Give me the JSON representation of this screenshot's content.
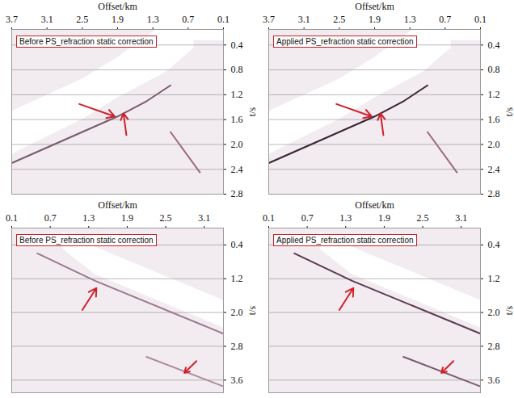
{
  "chart_data": [
    {
      "type": "line",
      "annotation": "Before PS_refraction static correction",
      "x_label": "Offset/km",
      "y_label": "t/s",
      "xlim": [
        3.7,
        0.1
      ],
      "xticks": [
        3.7,
        3.1,
        2.5,
        1.9,
        1.3,
        0.7,
        0.1
      ],
      "ylim": [
        0.15,
        2.8
      ],
      "yticks": [
        0.4,
        0.8,
        1.2,
        1.6,
        {
          "value": 2,
          "label": "2.0"
        },
        2.4,
        2.8
      ],
      "grid": true,
      "bands": [
        {
          "x": [
            3.7,
            2.5,
            1.9,
            1.24,
            1.05,
            0.6
          ],
          "upper": [
            1.47,
            0.95,
            0.6,
            0.15,
            0.15,
            0.15
          ],
          "lower": [
            2.16,
            1.6,
            1.25,
            0.92,
            0.82,
            0.45
          ],
          "color": "#ffffff"
        },
        {
          "x": [
            0.9,
            0.1
          ],
          "upper": [
            0.15,
            0.15
          ],
          "lower": [
            0.33,
            0.33
          ],
          "color": "#ffffff"
        }
      ],
      "series": [
        {
          "x": [
            3.7,
            2.5,
            1.9,
            1.4,
            1.0
          ],
          "values": [
            2.3,
            1.8,
            1.55,
            1.3,
            1.05
          ],
          "color": "#7a5a70"
        },
        {
          "x": [
            1.0,
            0.5
          ],
          "values": [
            1.8,
            2.45
          ],
          "color": "#9a6a78"
        }
      ],
      "arrows": [
        {
          "x1": 2.55,
          "y1": 1.35,
          "x2": 1.95,
          "y2": 1.55,
          "color": "#d0202a"
        },
        {
          "x1": 1.75,
          "y1": 1.85,
          "x2": 1.8,
          "y2": 1.5,
          "color": "#d0202a"
        }
      ]
    },
    {
      "type": "line",
      "annotation": "Applied PS_refraction static correction",
      "x_label": "Offset/km",
      "y_label": "t/s",
      "xlim": [
        3.7,
        0.1
      ],
      "xticks": [
        3.7,
        3.1,
        2.5,
        1.9,
        1.3,
        0.7,
        0.1
      ],
      "ylim": [
        0.15,
        2.8
      ],
      "yticks": [
        0.4,
        0.8,
        1.2,
        1.6,
        {
          "value": 2,
          "label": "2.0"
        },
        2.4,
        2.8
      ],
      "grid": true,
      "bands": [
        {
          "x": [
            3.7,
            2.5,
            1.9,
            1.24,
            1.05,
            0.6
          ],
          "upper": [
            1.47,
            0.95,
            0.6,
            0.15,
            0.15,
            0.15
          ],
          "lower": [
            2.16,
            1.6,
            1.25,
            0.92,
            0.82,
            0.45
          ],
          "color": "#ffffff"
        },
        {
          "x": [
            0.9,
            0.1
          ],
          "upper": [
            0.15,
            0.15
          ],
          "lower": [
            0.33,
            0.33
          ],
          "color": "#ffffff"
        }
      ],
      "series": [
        {
          "x": [
            3.7,
            2.5,
            1.9,
            1.4,
            1.0
          ],
          "values": [
            2.3,
            1.8,
            1.55,
            1.3,
            1.05
          ],
          "color": "#3a2434"
        },
        {
          "x": [
            1.0,
            0.5
          ],
          "values": [
            1.8,
            2.45
          ],
          "color": "#9a6a78"
        }
      ],
      "arrows": [
        {
          "x1": 2.55,
          "y1": 1.35,
          "x2": 1.95,
          "y2": 1.55,
          "color": "#d0202a"
        },
        {
          "x1": 1.75,
          "y1": 1.85,
          "x2": 1.8,
          "y2": 1.5,
          "color": "#d0202a"
        }
      ]
    },
    {
      "type": "line",
      "annotation": "Before PS_refraction static correction",
      "x_label": "Offset/km",
      "y_label": "t/s",
      "xlim": [
        0.1,
        3.4
      ],
      "xticks": [
        0.1,
        0.7,
        1.3,
        1.9,
        2.5,
        3.1
      ],
      "ylim": [
        0,
        3.9
      ],
      "yticks": [
        0.4,
        1.2,
        {
          "value": 2,
          "label": "2.0"
        },
        2.8,
        3.6
      ],
      "grid": true,
      "bands": [
        {
          "x": [
            0.9,
            1.4,
            3.4
          ],
          "upper": [
            0.1,
            0.45,
            1.71
          ],
          "lower": [
            0.5,
            1.1,
            2.36
          ],
          "color": "#ffffff"
        }
      ],
      "series": [
        {
          "x": [
            0.5,
            1.4,
            3.4
          ],
          "values": [
            0.6,
            1.25,
            2.5
          ],
          "color": "#9a7a90"
        },
        {
          "x": [
            2.2,
            3.4
          ],
          "values": [
            3.05,
            3.75
          ],
          "color": "#b08a9a"
        }
      ],
      "arrows": [
        {
          "x1": 1.2,
          "y1": 1.94,
          "x2": 1.42,
          "y2": 1.42,
          "color": "#d0202a"
        },
        {
          "x1": 2.98,
          "y1": 3.15,
          "x2": 2.79,
          "y2": 3.43,
          "color": "#d0202a"
        }
      ]
    },
    {
      "type": "line",
      "annotation": "Applied PS_refraction static correction",
      "x_label": "Offset/km",
      "y_label": "t/s",
      "xlim": [
        0.1,
        3.4
      ],
      "xticks": [
        0.1,
        0.7,
        1.3,
        1.9,
        2.5,
        3.1
      ],
      "ylim": [
        0,
        3.9
      ],
      "yticks": [
        0.4,
        1.2,
        {
          "value": 2,
          "label": "2.0"
        },
        2.8,
        3.6
      ],
      "grid": true,
      "bands": [
        {
          "x": [
            0.9,
            1.4,
            3.4
          ],
          "upper": [
            0.1,
            0.45,
            1.71
          ],
          "lower": [
            0.5,
            1.1,
            2.36
          ],
          "color": "#ffffff"
        }
      ],
      "series": [
        {
          "x": [
            0.5,
            1.4,
            3.4
          ],
          "values": [
            0.6,
            1.25,
            2.5
          ],
          "color": "#5a3a50"
        },
        {
          "x": [
            2.2,
            3.4
          ],
          "values": [
            3.05,
            3.75
          ],
          "color": "#7a5a70"
        }
      ],
      "arrows": [
        {
          "x1": 1.2,
          "y1": 1.94,
          "x2": 1.42,
          "y2": 1.42,
          "color": "#d0202a"
        },
        {
          "x1": 2.98,
          "y1": 3.15,
          "x2": 2.79,
          "y2": 3.43,
          "color": "#d0202a"
        }
      ]
    }
  ]
}
